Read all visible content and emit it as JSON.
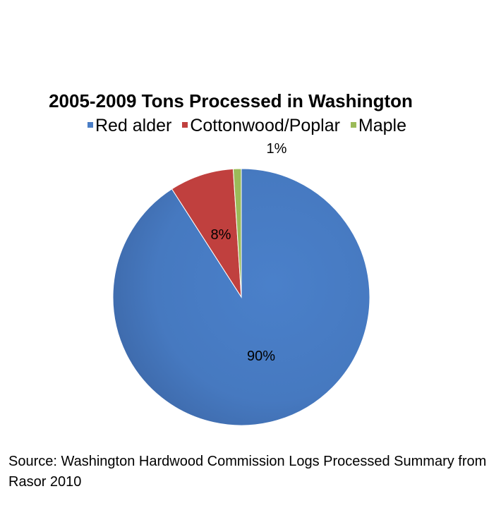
{
  "chart_data": {
    "type": "pie",
    "title": "2005-2009 Tons Processed in Washington",
    "categories": [
      "Red alder",
      "Cottonwood/Poplar",
      "Maple"
    ],
    "values": [
      90,
      8,
      1
    ],
    "unit": "%",
    "labels": [
      "90%",
      "8%",
      "1%"
    ],
    "colors": [
      "#4A7EC6",
      "#C0403E",
      "#9BBB59"
    ],
    "legend_position": "top"
  },
  "source_note": "Source: Washington Hardwood Commission Logs Processed Summary from Rasor 2010"
}
